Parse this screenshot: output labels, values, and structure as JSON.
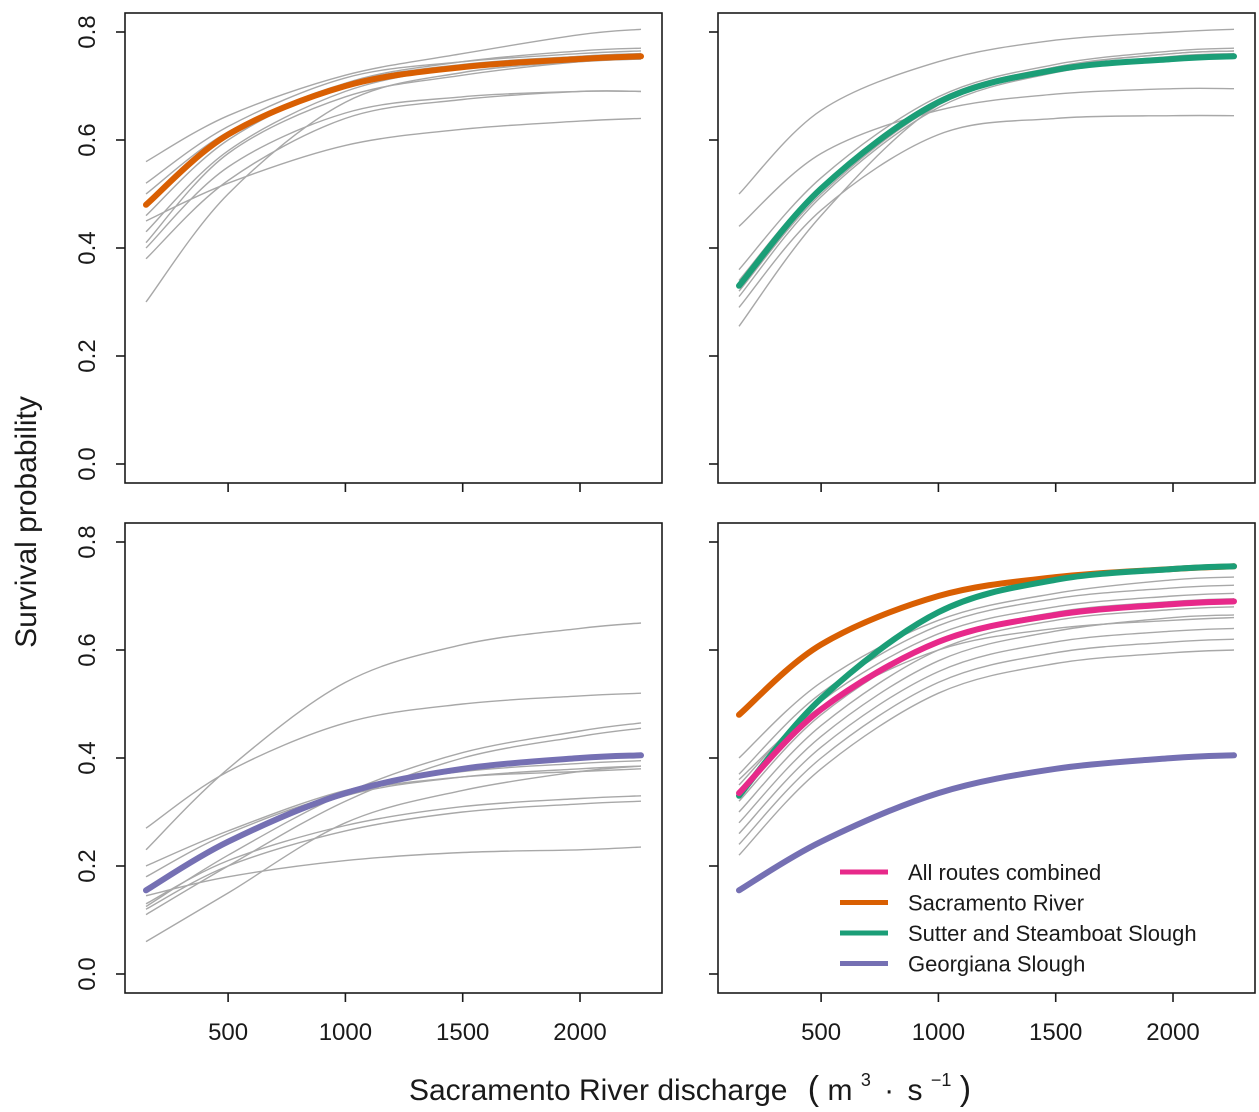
{
  "chart_data": [
    {
      "type": "line",
      "panel": "top-left",
      "xlim": [
        150,
        2260
      ],
      "ylim": [
        0,
        0.8
      ],
      "main_series": {
        "name": "Sacramento River",
        "color": "#d95f02",
        "x": [
          150,
          500,
          1000,
          1500,
          2000,
          2260
        ],
        "y": [
          0.48,
          0.61,
          0.7,
          0.735,
          0.75,
          0.755
        ]
      },
      "individual_series": [
        {
          "x": [
            150,
            500,
            1000,
            1500,
            2000,
            2260
          ],
          "y": [
            0.56,
            0.645,
            0.72,
            0.76,
            0.795,
            0.805
          ]
        },
        {
          "x": [
            150,
            500,
            1000,
            1500,
            2000,
            2260
          ],
          "y": [
            0.52,
            0.625,
            0.715,
            0.745,
            0.76,
            0.765
          ]
        },
        {
          "x": [
            150,
            500,
            1000,
            1500,
            2000,
            2260
          ],
          "y": [
            0.5,
            0.615,
            0.705,
            0.74,
            0.755,
            0.76
          ]
        },
        {
          "x": [
            150,
            500,
            1000,
            1500,
            2000,
            2260
          ],
          "y": [
            0.46,
            0.6,
            0.705,
            0.745,
            0.765,
            0.77
          ]
        },
        {
          "x": [
            150,
            500,
            1000,
            1500,
            2000,
            2260
          ],
          "y": [
            0.43,
            0.58,
            0.69,
            0.735,
            0.755,
            0.76
          ]
        },
        {
          "x": [
            150,
            500,
            1000,
            1500,
            2000,
            2260
          ],
          "y": [
            0.41,
            0.575,
            0.68,
            0.72,
            0.745,
            0.75
          ]
        },
        {
          "x": [
            150,
            500,
            1000,
            1500,
            2000,
            2260
          ],
          "y": [
            0.4,
            0.55,
            0.65,
            0.68,
            0.69,
            0.69
          ]
        },
        {
          "x": [
            150,
            500,
            1000,
            1500,
            2000,
            2260
          ],
          "y": [
            0.38,
            0.525,
            0.64,
            0.675,
            0.69,
            0.69
          ]
        },
        {
          "x": [
            150,
            500,
            1000,
            1500,
            2000,
            2260
          ],
          "y": [
            0.45,
            0.52,
            0.59,
            0.62,
            0.635,
            0.64
          ]
        },
        {
          "x": [
            150,
            500,
            1000,
            1500,
            2000,
            2260
          ],
          "y": [
            0.3,
            0.5,
            0.67,
            0.725,
            0.745,
            0.75
          ]
        }
      ]
    },
    {
      "type": "line",
      "panel": "top-right",
      "xlim": [
        150,
        2260
      ],
      "ylim": [
        0,
        0.8
      ],
      "main_series": {
        "name": "Sutter and Steamboat Slough",
        "color": "#1b9e77",
        "x": [
          150,
          500,
          1000,
          1500,
          2000,
          2260
        ],
        "y": [
          0.33,
          0.51,
          0.67,
          0.73,
          0.75,
          0.755
        ]
      },
      "individual_series": [
        {
          "x": [
            150,
            500,
            1000,
            1500,
            2000,
            2260
          ],
          "y": [
            0.5,
            0.655,
            0.745,
            0.785,
            0.8,
            0.805
          ]
        },
        {
          "x": [
            150,
            500,
            1000,
            1500,
            2000,
            2260
          ],
          "y": [
            0.44,
            0.575,
            0.655,
            0.685,
            0.695,
            0.695
          ]
        },
        {
          "x": [
            150,
            500,
            1000,
            1500,
            2000,
            2260
          ],
          "y": [
            0.36,
            0.53,
            0.68,
            0.74,
            0.765,
            0.77
          ]
        },
        {
          "x": [
            150,
            500,
            1000,
            1500,
            2000,
            2260
          ],
          "y": [
            0.34,
            0.515,
            0.675,
            0.735,
            0.76,
            0.765
          ]
        },
        {
          "x": [
            150,
            500,
            1000,
            1500,
            2000,
            2260
          ],
          "y": [
            0.32,
            0.5,
            0.665,
            0.73,
            0.755,
            0.76
          ]
        },
        {
          "x": [
            150,
            500,
            1000,
            1500,
            2000,
            2260
          ],
          "y": [
            0.31,
            0.495,
            0.66,
            0.725,
            0.75,
            0.755
          ]
        },
        {
          "x": [
            150,
            500,
            1000,
            1500,
            2000,
            2260
          ],
          "y": [
            0.29,
            0.47,
            0.61,
            0.64,
            0.645,
            0.645
          ]
        },
        {
          "x": [
            150,
            500,
            1000,
            1500,
            2000,
            2260
          ],
          "y": [
            0.255,
            0.46,
            0.665,
            0.735,
            0.76,
            0.765
          ]
        }
      ]
    },
    {
      "type": "line",
      "panel": "bottom-left",
      "xlim": [
        150,
        2260
      ],
      "ylim": [
        0,
        0.8
      ],
      "main_series": {
        "name": "Georgiana Slough",
        "color": "#7570b3",
        "x": [
          150,
          500,
          1000,
          1500,
          2000,
          2260
        ],
        "y": [
          0.155,
          0.245,
          0.335,
          0.38,
          0.4,
          0.405
        ]
      },
      "individual_series": [
        {
          "x": [
            150,
            500,
            1000,
            1500,
            2000,
            2260
          ],
          "y": [
            0.23,
            0.38,
            0.54,
            0.61,
            0.64,
            0.65
          ]
        },
        {
          "x": [
            150,
            500,
            1000,
            1500,
            2000,
            2260
          ],
          "y": [
            0.27,
            0.375,
            0.465,
            0.5,
            0.515,
            0.52
          ]
        },
        {
          "x": [
            150,
            500,
            1000,
            1500,
            2000,
            2260
          ],
          "y": [
            0.2,
            0.265,
            0.34,
            0.375,
            0.39,
            0.395
          ]
        },
        {
          "x": [
            150,
            500,
            1000,
            1500,
            2000,
            2260
          ],
          "y": [
            0.18,
            0.26,
            0.335,
            0.365,
            0.375,
            0.38
          ]
        },
        {
          "x": [
            150,
            500,
            1000,
            1500,
            2000,
            2260
          ],
          "y": [
            0.16,
            0.245,
            0.33,
            0.365,
            0.38,
            0.385
          ]
        },
        {
          "x": [
            150,
            500,
            1000,
            1500,
            2000,
            2260
          ],
          "y": [
            0.125,
            0.22,
            0.335,
            0.41,
            0.45,
            0.465
          ]
        },
        {
          "x": [
            150,
            500,
            1000,
            1500,
            2000,
            2260
          ],
          "y": [
            0.11,
            0.2,
            0.32,
            0.4,
            0.44,
            0.455
          ]
        },
        {
          "x": [
            150,
            500,
            1000,
            1500,
            2000,
            2260
          ],
          "y": [
            0.13,
            0.21,
            0.275,
            0.31,
            0.325,
            0.33
          ]
        },
        {
          "x": [
            150,
            500,
            1000,
            1500,
            2000,
            2260
          ],
          "y": [
            0.12,
            0.2,
            0.265,
            0.3,
            0.315,
            0.32
          ]
        },
        {
          "x": [
            150,
            500,
            1000,
            1500,
            2000,
            2260
          ],
          "y": [
            0.145,
            0.18,
            0.21,
            0.225,
            0.23,
            0.235
          ]
        },
        {
          "x": [
            150,
            500,
            1000,
            1500,
            2000,
            2260
          ],
          "y": [
            0.06,
            0.15,
            0.28,
            0.34,
            0.375,
            0.385
          ]
        }
      ]
    },
    {
      "type": "line",
      "panel": "bottom-right",
      "xlim": [
        150,
        2260
      ],
      "ylim": [
        0,
        0.8
      ],
      "legend_position": "bottom-right",
      "series": [
        {
          "name": "All routes combined",
          "color": "#e7298a",
          "x": [
            150,
            500,
            1000,
            1500,
            2000,
            2260
          ],
          "y": [
            0.335,
            0.49,
            0.615,
            0.665,
            0.685,
            0.69
          ]
        },
        {
          "name": "Sacramento River",
          "color": "#d95f02",
          "x": [
            150,
            500,
            1000,
            1500,
            2000,
            2260
          ],
          "y": [
            0.48,
            0.61,
            0.7,
            0.735,
            0.75,
            0.755
          ]
        },
        {
          "name": "Sutter and Steamboat Slough",
          "color": "#1b9e77",
          "x": [
            150,
            500,
            1000,
            1500,
            2000,
            2260
          ],
          "y": [
            0.33,
            0.51,
            0.67,
            0.73,
            0.75,
            0.755
          ]
        },
        {
          "name": "Georgiana Slough",
          "color": "#7570b3",
          "x": [
            150,
            500,
            1000,
            1500,
            2000,
            2260
          ],
          "y": [
            0.155,
            0.245,
            0.335,
            0.38,
            0.4,
            0.405
          ]
        }
      ],
      "individual_series": [
        {
          "x": [
            150,
            500,
            1000,
            1500,
            2000,
            2260
          ],
          "y": [
            0.4,
            0.54,
            0.655,
            0.705,
            0.73,
            0.735
          ]
        },
        {
          "x": [
            150,
            500,
            1000,
            1500,
            2000,
            2260
          ],
          "y": [
            0.37,
            0.52,
            0.645,
            0.695,
            0.715,
            0.72
          ]
        },
        {
          "x": [
            150,
            500,
            1000,
            1500,
            2000,
            2260
          ],
          "y": [
            0.35,
            0.505,
            0.63,
            0.68,
            0.7,
            0.705
          ]
        },
        {
          "x": [
            150,
            500,
            1000,
            1500,
            2000,
            2260
          ],
          "y": [
            0.32,
            0.48,
            0.615,
            0.67,
            0.69,
            0.695
          ]
        },
        {
          "x": [
            150,
            500,
            1000,
            1500,
            2000,
            2260
          ],
          "y": [
            0.3,
            0.46,
            0.6,
            0.655,
            0.675,
            0.68
          ]
        },
        {
          "x": [
            150,
            500,
            1000,
            1500,
            2000,
            2260
          ],
          "y": [
            0.28,
            0.44,
            0.58,
            0.635,
            0.66,
            0.665
          ]
        },
        {
          "x": [
            150,
            500,
            1000,
            1500,
            2000,
            2260
          ],
          "y": [
            0.26,
            0.42,
            0.56,
            0.615,
            0.635,
            0.64
          ]
        },
        {
          "x": [
            150,
            500,
            1000,
            1500,
            2000,
            2260
          ],
          "y": [
            0.24,
            0.4,
            0.54,
            0.595,
            0.615,
            0.62
          ]
        },
        {
          "x": [
            150,
            500,
            1000,
            1500,
            2000,
            2260
          ],
          "y": [
            0.22,
            0.38,
            0.52,
            0.575,
            0.595,
            0.6
          ]
        },
        {
          "x": [
            150,
            500,
            1000,
            1500,
            2000,
            2260
          ],
          "y": [
            0.36,
            0.495,
            0.6,
            0.64,
            0.655,
            0.66
          ]
        }
      ]
    }
  ],
  "x_ticks": [
    500,
    1000,
    1500,
    2000
  ],
  "y_ticks": [
    "0.0",
    "0.2",
    "0.4",
    "0.6",
    "0.8"
  ],
  "ylabel": "Survival probability",
  "xlabel_main": "Sacramento River discharge",
  "xlabel_unit": {
    "base1": "m",
    "exp1": "3",
    "dot": "·",
    "base2": "s",
    "exp2": "−1"
  },
  "colors": {
    "individual": "#a8a8a8",
    "axis": "#1a1a1a"
  }
}
